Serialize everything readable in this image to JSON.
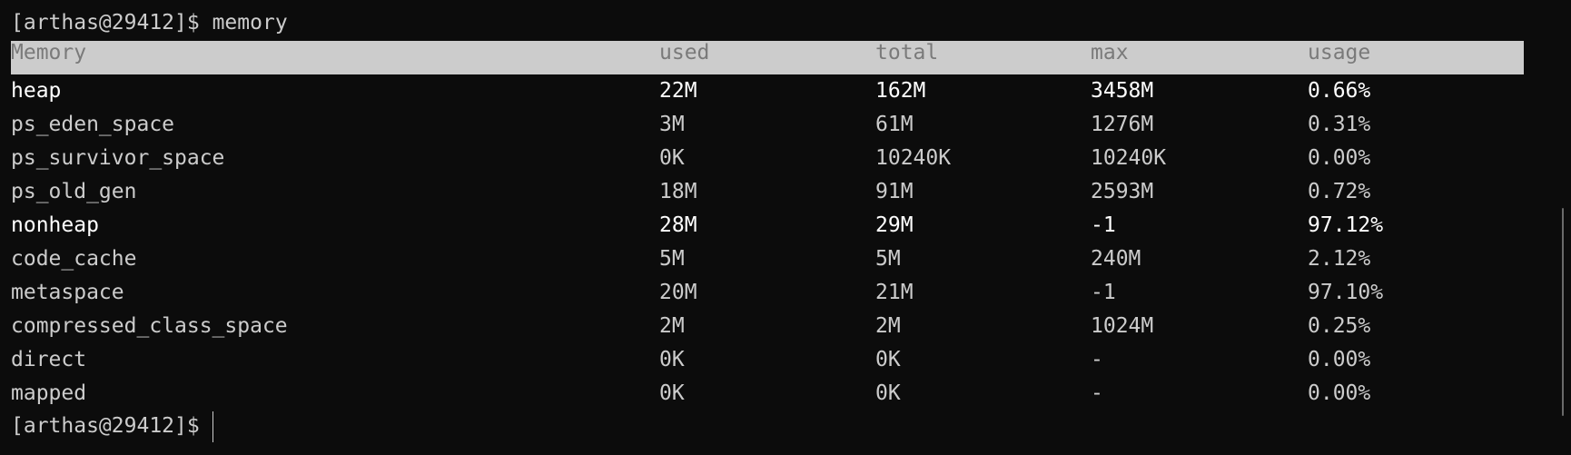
{
  "terminal": {
    "prompt": "[arthas@29412]$",
    "command": "memory",
    "colors": {
      "background": "#0c0c0c",
      "text": "#cccccc",
      "bright": "#ffffff",
      "header_bg": "#cccccc",
      "header_text": "#7a7a7a"
    }
  },
  "table": {
    "headers": [
      "Memory",
      "used",
      "total",
      "max",
      "usage"
    ],
    "rows": [
      {
        "name": "heap",
        "used": "22M",
        "total": "162M",
        "max": "3458M",
        "usage": "0.66%",
        "bright": true
      },
      {
        "name": "ps_eden_space",
        "used": "3M",
        "total": "61M",
        "max": "1276M",
        "usage": "0.31%"
      },
      {
        "name": "ps_survivor_space",
        "used": "0K",
        "total": "10240K",
        "max": "10240K",
        "usage": "0.00%"
      },
      {
        "name": "ps_old_gen",
        "used": "18M",
        "total": "91M",
        "max": "2593M",
        "usage": "0.72%"
      },
      {
        "name": "nonheap",
        "used": "28M",
        "total": "29M",
        "max": "-1",
        "usage": "97.12%",
        "bright": true
      },
      {
        "name": "code_cache",
        "used": "5M",
        "total": "5M",
        "max": "240M",
        "usage": "2.12%"
      },
      {
        "name": "metaspace",
        "used": "20M",
        "total": "21M",
        "max": "-1",
        "usage": "97.10%"
      },
      {
        "name": "compressed_class_space",
        "used": "2M",
        "total": "2M",
        "max": "1024M",
        "usage": "0.25%"
      },
      {
        "name": "direct",
        "used": "0K",
        "total": "0K",
        "max": "-",
        "usage": "0.00%"
      },
      {
        "name": "mapped",
        "used": "0K",
        "total": "0K",
        "max": "-",
        "usage": "0.00%"
      }
    ]
  }
}
